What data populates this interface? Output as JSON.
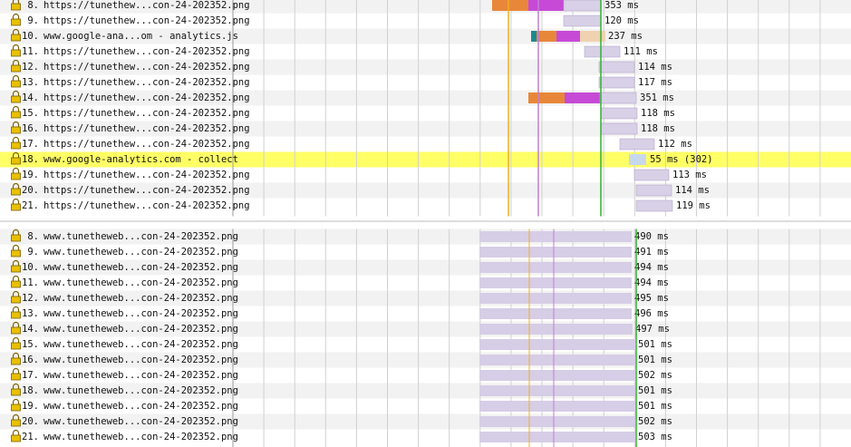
{
  "top_rows": [
    {
      "index": "8.",
      "url": "https://tunethew...con-24-202352.png",
      "time": "353 ms"
    },
    {
      "index": "9.",
      "url": "https://tunethew...con-24-202352.png",
      "time": "120 ms"
    },
    {
      "index": "10.",
      "url": "www.google-ana...om - analytics.js",
      "time": "237 ms"
    },
    {
      "index": "11.",
      "url": "https://tunethew...con-24-202352.png",
      "time": "111 ms"
    },
    {
      "index": "12.",
      "url": "https://tunethew...con-24-202352.png",
      "time": "114 ms"
    },
    {
      "index": "13.",
      "url": "https://tunethew...con-24-202352.png",
      "time": "117 ms"
    },
    {
      "index": "14.",
      "url": "https://tunethew...con-24-202352.png",
      "time": "351 ms"
    },
    {
      "index": "15.",
      "url": "https://tunethew...con-24-202352.png",
      "time": "118 ms"
    },
    {
      "index": "16.",
      "url": "https://tunethew...con-24-202352.png",
      "time": "118 ms"
    },
    {
      "index": "17.",
      "url": "https://tunethew...con-24-202352.png",
      "time": "112 ms"
    },
    {
      "index": "18.",
      "url": "www.google-analytics.com - collect",
      "time": "55 ms (302)"
    },
    {
      "index": "19.",
      "url": "https://tunethew...con-24-202352.png",
      "time": "113 ms"
    },
    {
      "index": "20.",
      "url": "https://tunethew...con-24-202352.png",
      "time": "114 ms"
    },
    {
      "index": "21.",
      "url": "https://tunethew...con-24-202352.png",
      "time": "119 ms"
    }
  ],
  "bottom_rows": [
    {
      "index": "8.",
      "url": "www.tunetheweb...con-24-202352.png",
      "time": "490 ms"
    },
    {
      "index": "9.",
      "url": "www.tunetheweb...con-24-202352.png",
      "time": "491 ms"
    },
    {
      "index": "10.",
      "url": "www.tunetheweb...con-24-202352.png",
      "time": "494 ms"
    },
    {
      "index": "11.",
      "url": "www.tunetheweb...con-24-202352.png",
      "time": "494 ms"
    },
    {
      "index": "12.",
      "url": "www.tunetheweb...con-24-202352.png",
      "time": "495 ms"
    },
    {
      "index": "13.",
      "url": "www.tunetheweb...con-24-202352.png",
      "time": "496 ms"
    },
    {
      "index": "14.",
      "url": "www.tunetheweb...con-24-202352.png",
      "time": "497 ms"
    },
    {
      "index": "15.",
      "url": "www.tunetheweb...con-24-202352.png",
      "time": "501 ms"
    },
    {
      "index": "16.",
      "url": "www.tunetheweb...con-24-202352.png",
      "time": "501 ms"
    },
    {
      "index": "17.",
      "url": "www.tunetheweb...con-24-202352.png",
      "time": "502 ms"
    },
    {
      "index": "18.",
      "url": "www.tunetheweb...con-24-202352.png",
      "time": "501 ms"
    },
    {
      "index": "19.",
      "url": "www.tunetheweb...con-24-202352.png",
      "time": "501 ms"
    },
    {
      "index": "20.",
      "url": "www.tunetheweb...con-24-202352.png",
      "time": "502 ms"
    },
    {
      "index": "21.",
      "url": "www.tunetheweb...con-24-202352.png",
      "time": "503 ms"
    }
  ]
}
